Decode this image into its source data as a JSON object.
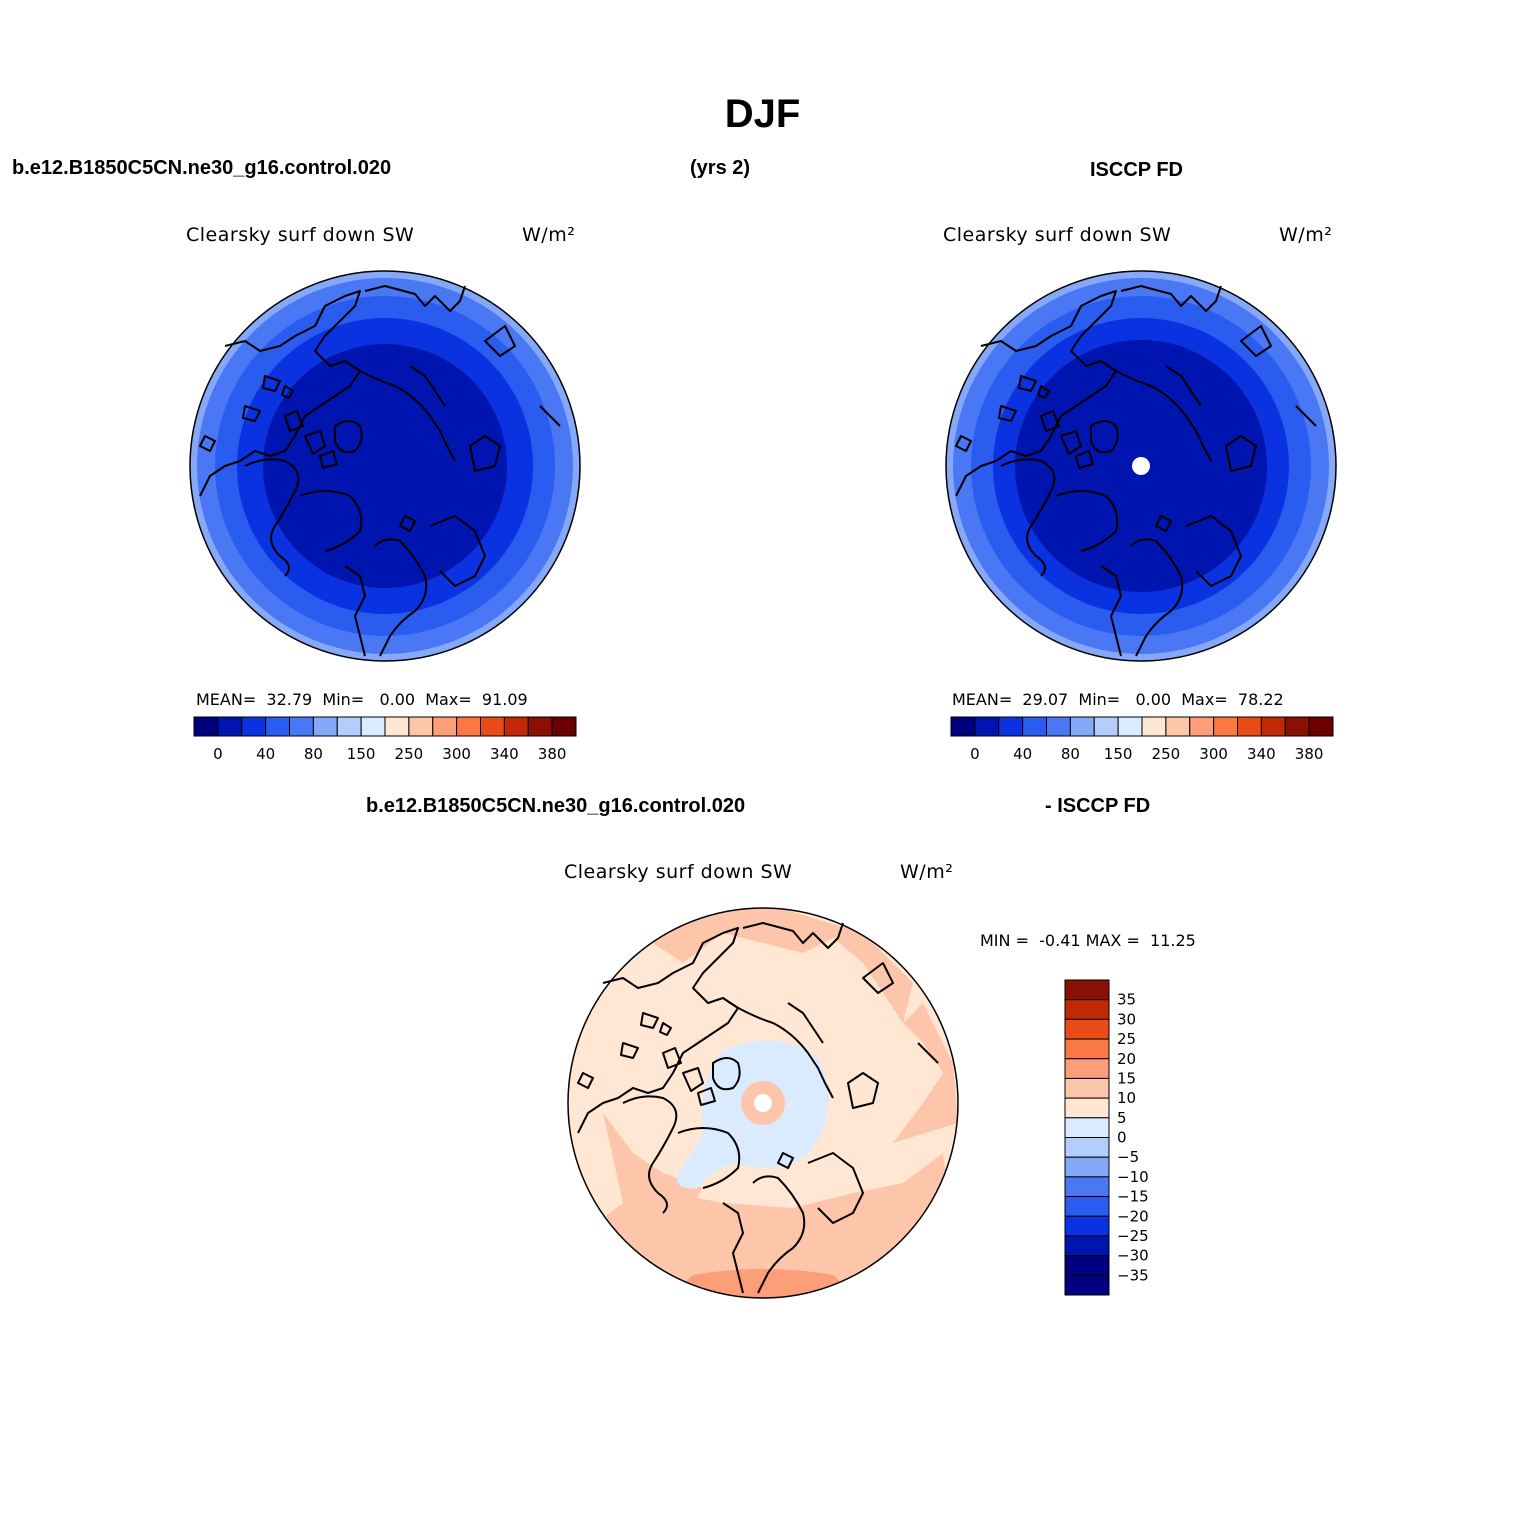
{
  "page": {
    "title": "DJF",
    "case_name": "b.e12.B1850C5CN.ne30_g16.control.020",
    "years": "(yrs 2)",
    "obs_name": "ISCCP FD",
    "diff_case_name": "b.e12.B1850C5CN.ne30_g16.control.020",
    "diff_obs_name": "- ISCCP FD"
  },
  "panels": {
    "model": {
      "variable": "Clearsky surf down SW",
      "units": "W/m²",
      "mean_label": "MEAN=",
      "mean": "32.79",
      "min_label": "Min=",
      "min": "0.00",
      "max_label": "Max=",
      "max": "91.09"
    },
    "obs": {
      "variable": "Clearsky surf down SW",
      "units": "W/m²",
      "mean_label": "MEAN=",
      "mean": "29.07",
      "min_label": "Min=",
      "min": "0.00",
      "max_label": "Max=",
      "max": "78.22"
    },
    "diff": {
      "variable": "Clearsky surf down SW",
      "units": "W/m²",
      "min_label": "MIN =",
      "min": "-0.41",
      "max_label": "MAX =",
      "max": "11.25"
    }
  },
  "colorbars": {
    "abs_colors": [
      "#00007f",
      "#0015b0",
      "#0a32e0",
      "#2a5cf0",
      "#4a78f5",
      "#86a8f8",
      "#b4cdfc",
      "#daeaff",
      "#ffe7d3",
      "#fdc6aa",
      "#fc9e78",
      "#fb7744",
      "#e94c16",
      "#c02806",
      "#8a1004",
      "#6b0000"
    ],
    "abs_ticks": [
      "0",
      "40",
      "80",
      "150",
      "250",
      "300",
      "340",
      "380"
    ],
    "diff_colors": [
      "#000080",
      "#0015b0",
      "#0a32e0",
      "#2a5cf0",
      "#4a78f5",
      "#86a8f8",
      "#b4cdfc",
      "#daeaff",
      "#ffe7d3",
      "#fdc6aa",
      "#fc9e78",
      "#fb7744",
      "#e94c16",
      "#c02806",
      "#8a1004"
    ],
    "diff_ticks": [
      "35",
      "30",
      "25",
      "20",
      "15",
      "10",
      "5",
      "0",
      "−5",
      "−10",
      "−15",
      "−20",
      "−25",
      "−30",
      "−35"
    ]
  },
  "map_colors": {
    "outer_ring_light": "#86a8f8",
    "ring_a": "#4a78f5",
    "ring_b": "#2a5cf0",
    "ring_c": "#0a32e0",
    "ring_d": "#0015b0",
    "diff_base": "#ffe7d3",
    "diff_pos": "#fdc6aa",
    "diff_neg": "#daeaff"
  }
}
